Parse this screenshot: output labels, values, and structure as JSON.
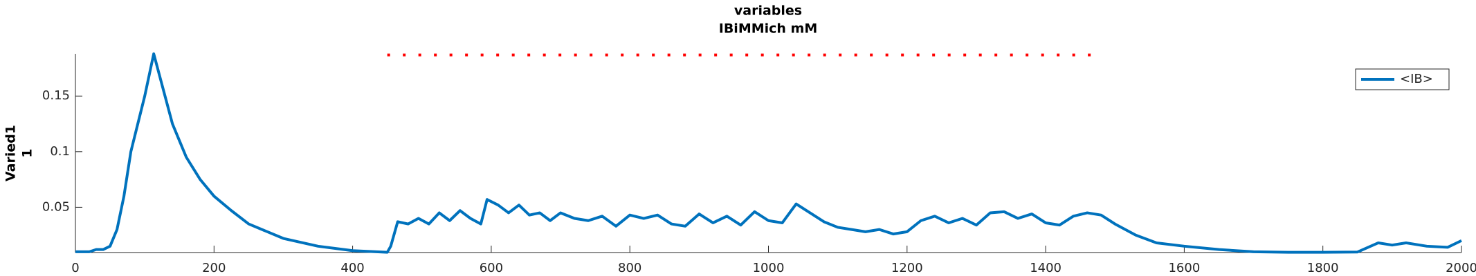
{
  "chart_data": {
    "type": "line",
    "title": [
      "variables",
      "IBiMMich mM"
    ],
    "ylabel": [
      "Varied1",
      "1"
    ],
    "xlim": [
      0,
      2000
    ],
    "xticks": [
      0,
      200,
      400,
      600,
      800,
      1000,
      1200,
      1400,
      1600,
      1800,
      2000
    ],
    "ylim": [
      0.0093,
      0.188
    ],
    "yticks": [
      0.05,
      0.1,
      0.15
    ],
    "legend": "top-right",
    "series": [
      {
        "name": "<IB>",
        "color": "#0072bd",
        "style": "solid",
        "x": [
          0,
          20,
          30,
          40,
          50,
          60,
          70,
          80,
          90,
          100,
          113,
          125,
          140,
          160,
          180,
          200,
          225,
          250,
          300,
          350,
          400,
          450,
          455,
          465,
          480,
          495,
          510,
          525,
          540,
          555,
          570,
          585,
          594,
          610,
          625,
          640,
          655,
          670,
          685,
          700,
          720,
          740,
          760,
          780,
          800,
          820,
          840,
          860,
          880,
          900,
          920,
          940,
          960,
          980,
          1000,
          1020,
          1040,
          1060,
          1080,
          1100,
          1120,
          1140,
          1160,
          1180,
          1200,
          1220,
          1240,
          1260,
          1280,
          1300,
          1320,
          1340,
          1360,
          1380,
          1400,
          1420,
          1440,
          1460,
          1480,
          1500,
          1530,
          1560,
          1600,
          1650,
          1700,
          1750,
          1800,
          1850,
          1880,
          1900,
          1920,
          1950,
          1980,
          2000
        ],
        "values": [
          0.01,
          0.01,
          0.012,
          0.012,
          0.015,
          0.03,
          0.06,
          0.1,
          0.125,
          0.15,
          0.188,
          0.16,
          0.125,
          0.095,
          0.075,
          0.06,
          0.047,
          0.035,
          0.022,
          0.015,
          0.011,
          0.0095,
          0.015,
          0.037,
          0.035,
          0.04,
          0.035,
          0.045,
          0.038,
          0.047,
          0.04,
          0.035,
          0.057,
          0.052,
          0.045,
          0.052,
          0.043,
          0.045,
          0.038,
          0.045,
          0.04,
          0.038,
          0.042,
          0.033,
          0.043,
          0.04,
          0.043,
          0.035,
          0.033,
          0.044,
          0.036,
          0.042,
          0.034,
          0.046,
          0.038,
          0.036,
          0.053,
          0.045,
          0.037,
          0.032,
          0.03,
          0.028,
          0.03,
          0.026,
          0.028,
          0.038,
          0.042,
          0.036,
          0.04,
          0.034,
          0.045,
          0.046,
          0.04,
          0.044,
          0.036,
          0.034,
          0.042,
          0.045,
          0.043,
          0.035,
          0.025,
          0.018,
          0.015,
          0.012,
          0.01,
          0.0095,
          0.0095,
          0.0098,
          0.018,
          0.016,
          0.018,
          0.015,
          0.014,
          0.02
        ]
      },
      {
        "color": "#ff0000",
        "style": "dotted",
        "x": [
          450,
          1480
        ],
        "values": [
          0.187,
          0.187
        ]
      }
    ]
  }
}
